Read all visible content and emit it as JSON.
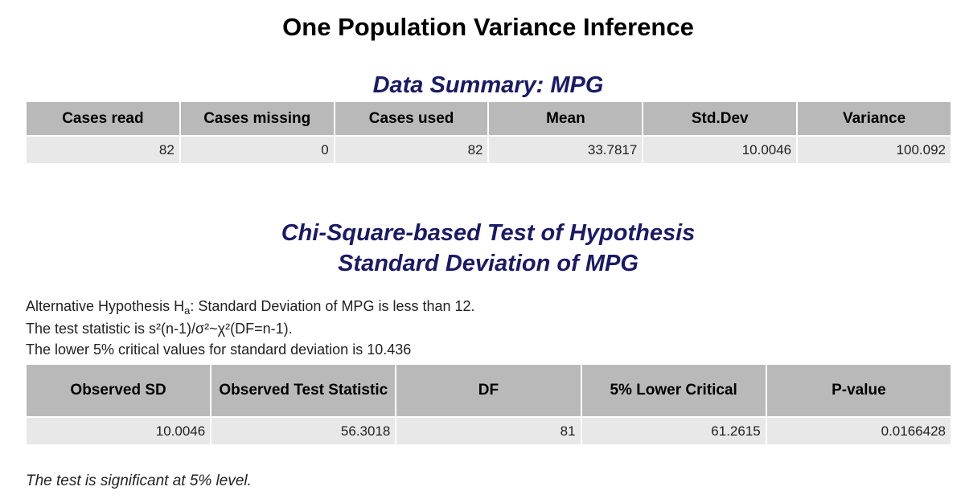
{
  "title": "One Population Variance Inference",
  "summary": {
    "title": "Data Summary: MPG",
    "headers": [
      "Cases read",
      "Cases missing",
      "Cases used",
      "Mean",
      "Std.Dev",
      "Variance"
    ],
    "values": [
      "82",
      "0",
      "82",
      "33.7817",
      "10.0046",
      "100.092"
    ]
  },
  "test": {
    "title_line1": "Chi-Square-based Test of Hypothesis",
    "title_line2": "Standard Deviation of MPG",
    "hypothesis_prefix": "Alternative Hypothesis H",
    "hypothesis_sub": "a",
    "hypothesis_rest": ": Standard Deviation of MPG is less than 12.",
    "statistic_line": "The test statistic is s²(n-1)/σ²~χ²(DF=n-1).",
    "critical_line": "The lower 5% critical values for standard deviation is 10.436",
    "headers": [
      "Observed SD",
      "Observed Test Statistic",
      "DF",
      "5% Lower Critical",
      "P-value"
    ],
    "values": [
      "10.0046",
      "56.3018",
      "81",
      "61.2615",
      "0.0166428"
    ]
  },
  "conclusion": "The test is significant at 5% level."
}
